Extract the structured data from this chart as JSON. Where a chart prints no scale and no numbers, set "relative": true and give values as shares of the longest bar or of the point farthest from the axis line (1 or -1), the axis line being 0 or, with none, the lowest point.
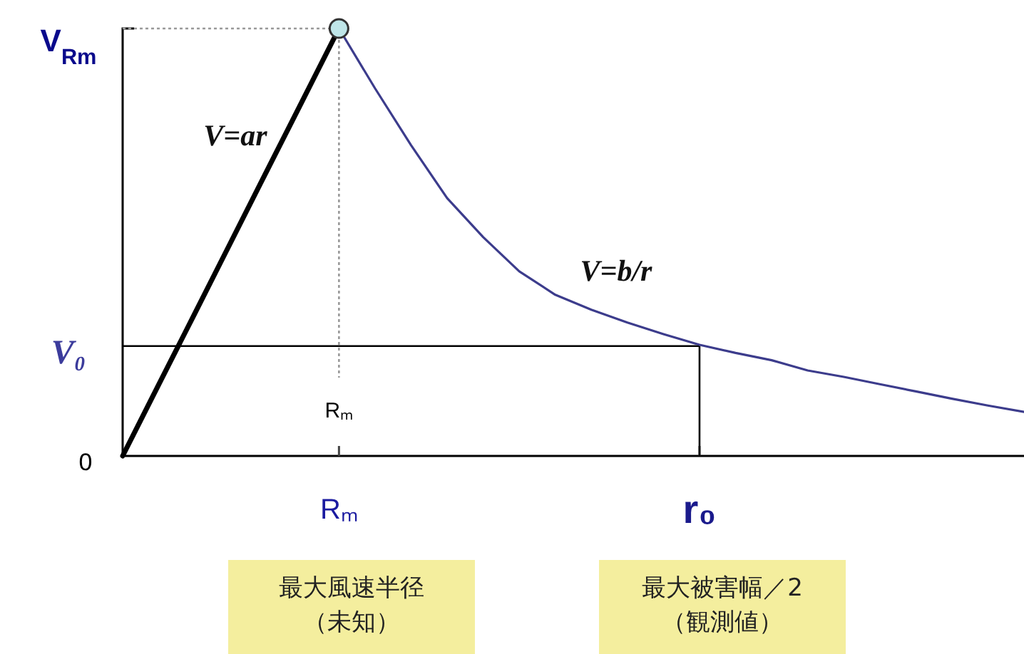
{
  "chart_data": {
    "type": "line",
    "relative": true,
    "categories": [
      null,
      null,
      null,
      null,
      null,
      null,
      "Rₘ",
      null,
      null,
      null,
      null,
      null,
      null,
      null,
      null,
      null,
      "r₀",
      null,
      null,
      null,
      null,
      null,
      null,
      null,
      null,
      null
    ],
    "series": [
      {
        "color": "#000000",
        "values": [
          0,
          0.167,
          0.333,
          0.5,
          0.667,
          0.833,
          1,
          null,
          null,
          null,
          null,
          null,
          null,
          null,
          null,
          null,
          null,
          null,
          null,
          null,
          null,
          null,
          null,
          null,
          null,
          null
        ]
      },
      {
        "color": "#3c3c8c",
        "values": [
          null,
          null,
          null,
          null,
          null,
          null,
          1,
          0.86,
          0.727,
          0.603,
          0.512,
          0.432,
          0.377,
          0.342,
          0.312,
          0.285,
          0.26,
          0.241,
          0.224,
          0.2,
          0.185,
          0.168,
          0.151,
          0.134,
          0.118,
          0.103
        ]
      },
      {
        "type": "scatter",
        "color": "#bfe6e8",
        "marker": "circle",
        "values": [
          null,
          null,
          null,
          null,
          null,
          null,
          1,
          null,
          null,
          null,
          null,
          null,
          null,
          null,
          null,
          null,
          null,
          null,
          null,
          null,
          null,
          null,
          null,
          null,
          null,
          null
        ]
      }
    ],
    "ref_lines": [
      {
        "axis": "y",
        "value": 1,
        "label": "V$_{Rm}$",
        "color": "#999999",
        "line_style": "dotted"
      },
      {
        "axis": "x",
        "value": "Rₘ",
        "label": "Rₘ",
        "color": "#999999",
        "line_style": "dotted"
      },
      {
        "axis": "y",
        "value": 0.257,
        "label": "V₀",
        "color": "#000000"
      },
      {
        "axis": "x",
        "value": "r₀",
        "color": "#000000"
      }
    ],
    "annotations": [
      "V=ar",
      "V=b/r",
      "0",
      "最大風速半径（未知）",
      "最大被害幅／2（観測値）"
    ]
  }
}
